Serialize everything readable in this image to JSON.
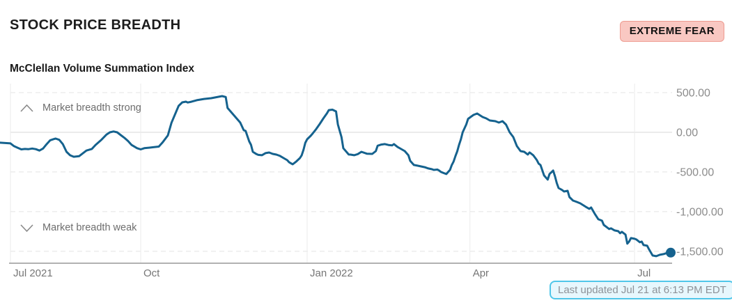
{
  "header": {
    "title": "STOCK PRICE BREADTH",
    "status_badge": "EXTREME FEAR"
  },
  "chart": {
    "subtitle": "McClellan Volume Summation Index",
    "annotations": {
      "strong": "Market breadth strong",
      "weak": "Market breadth weak"
    }
  },
  "footer": {
    "last_updated": "Last updated Jul 21 at 6:13 PM EDT"
  },
  "colors": {
    "badge_bg": "#f9c8c2",
    "badge_border": "#ee9b90",
    "badge_text": "#111111",
    "pill_bg": "#e7f7fd",
    "pill_border": "#4fc6e9",
    "pill_text": "#8d9298",
    "line": "#15628e"
  },
  "chart_data": {
    "type": "line",
    "title": "McClellan Volume Summation Index",
    "x_start": "2021-07-21",
    "x_end": "2022-07-21",
    "ylim": [
      -1650,
      614
    ],
    "y_axis_side": "right",
    "legend_position": "none",
    "grid": {
      "horizontal": "dashed",
      "zero_line": "solid",
      "vertical": "solid"
    },
    "line_color": "#15628e",
    "end_marker": true,
    "y_ticks": [
      {
        "value": 500,
        "label": "500.00"
      },
      {
        "value": 0,
        "label": "0.00"
      },
      {
        "value": -500,
        "label": "-500.00"
      },
      {
        "value": -1000,
        "label": "-1,000.00"
      },
      {
        "value": -1500,
        "label": "-1,500.00"
      }
    ],
    "x_ticks": [
      {
        "date": "2021-07-21",
        "label": "Jul 2021"
      },
      {
        "date": "2021-10-01",
        "label": "Oct"
      },
      {
        "date": "2022-01-01",
        "label": "Jan 2022"
      },
      {
        "date": "2022-04-01",
        "label": "Apr"
      },
      {
        "date": "2022-07-01",
        "label": "Jul"
      }
    ],
    "series": [
      {
        "name": "McClellan Volume Summation Index",
        "points": [
          [
            "2021-07-15",
            -130
          ],
          [
            "2021-07-21",
            -140
          ],
          [
            "2021-07-23",
            -175
          ],
          [
            "2021-07-25",
            -195
          ],
          [
            "2021-07-27",
            -215
          ],
          [
            "2021-07-29",
            -210
          ],
          [
            "2021-07-31",
            -213
          ],
          [
            "2021-08-02",
            -205
          ],
          [
            "2021-08-04",
            -213
          ],
          [
            "2021-08-06",
            -230
          ],
          [
            "2021-08-08",
            -205
          ],
          [
            "2021-08-10",
            -150
          ],
          [
            "2021-08-12",
            -100
          ],
          [
            "2021-08-14",
            -85
          ],
          [
            "2021-08-15",
            -79
          ],
          [
            "2021-08-17",
            -95
          ],
          [
            "2021-08-19",
            -150
          ],
          [
            "2021-08-21",
            -246
          ],
          [
            "2021-08-23",
            -290
          ],
          [
            "2021-08-25",
            -308
          ],
          [
            "2021-08-28",
            -300
          ],
          [
            "2021-08-30",
            -265
          ],
          [
            "2021-09-01",
            -230
          ],
          [
            "2021-09-04",
            -210
          ],
          [
            "2021-09-06",
            -160
          ],
          [
            "2021-09-09",
            -100
          ],
          [
            "2021-09-12",
            -30
          ],
          [
            "2021-09-14",
            0
          ],
          [
            "2021-09-16",
            10
          ],
          [
            "2021-09-18",
            0
          ],
          [
            "2021-09-20",
            -35
          ],
          [
            "2021-09-22",
            -70
          ],
          [
            "2021-09-24",
            -110
          ],
          [
            "2021-09-26",
            -160
          ],
          [
            "2021-09-29",
            -200
          ],
          [
            "2021-10-01",
            -215
          ],
          [
            "2021-10-03",
            -200
          ],
          [
            "2021-10-06",
            -193
          ],
          [
            "2021-10-08",
            -188
          ],
          [
            "2021-10-11",
            -180
          ],
          [
            "2021-10-13",
            -130
          ],
          [
            "2021-10-16",
            -40
          ],
          [
            "2021-10-18",
            120
          ],
          [
            "2021-10-21",
            280
          ],
          [
            "2021-10-22",
            333
          ],
          [
            "2021-10-24",
            377
          ],
          [
            "2021-10-26",
            386
          ],
          [
            "2021-10-27",
            375
          ],
          [
            "2021-10-29",
            385
          ],
          [
            "2021-11-01",
            404
          ],
          [
            "2021-11-05",
            420
          ],
          [
            "2021-11-09",
            430
          ],
          [
            "2021-11-13",
            447
          ],
          [
            "2021-11-15",
            456
          ],
          [
            "2021-11-17",
            445
          ],
          [
            "2021-11-18",
            307
          ],
          [
            "2021-11-21",
            228
          ],
          [
            "2021-11-23",
            175
          ],
          [
            "2021-11-25",
            123
          ],
          [
            "2021-11-27",
            26
          ],
          [
            "2021-11-28",
            18
          ],
          [
            "2021-11-30",
            -114
          ],
          [
            "2021-12-01",
            -158
          ],
          [
            "2021-12-02",
            -246
          ],
          [
            "2021-12-04",
            -275
          ],
          [
            "2021-12-05",
            -285
          ],
          [
            "2021-12-07",
            -289
          ],
          [
            "2021-12-09",
            -263
          ],
          [
            "2021-12-11",
            -255
          ],
          [
            "2021-12-13",
            -272
          ],
          [
            "2021-12-15",
            -281
          ],
          [
            "2021-12-17",
            -298
          ],
          [
            "2021-12-19",
            -325
          ],
          [
            "2021-12-21",
            -351
          ],
          [
            "2021-12-22",
            -377
          ],
          [
            "2021-12-24",
            -403
          ],
          [
            "2021-12-26",
            -368
          ],
          [
            "2021-12-28",
            -325
          ],
          [
            "2021-12-29",
            -289
          ],
          [
            "2021-12-30",
            -220
          ],
          [
            "2021-12-31",
            -131
          ],
          [
            "2022-01-01",
            -88
          ],
          [
            "2022-01-03",
            -44
          ],
          [
            "2022-01-04",
            -18
          ],
          [
            "2022-01-06",
            40
          ],
          [
            "2022-01-08",
            105
          ],
          [
            "2022-01-10",
            175
          ],
          [
            "2022-01-12",
            240
          ],
          [
            "2022-01-13",
            280
          ],
          [
            "2022-01-15",
            285
          ],
          [
            "2022-01-17",
            263
          ],
          [
            "2022-01-18",
            100
          ],
          [
            "2022-01-20",
            -60
          ],
          [
            "2022-01-21",
            -200
          ],
          [
            "2022-01-24",
            -280
          ],
          [
            "2022-01-25",
            -281
          ],
          [
            "2022-01-27",
            -289
          ],
          [
            "2022-01-29",
            -275
          ],
          [
            "2022-01-31",
            -246
          ],
          [
            "2022-02-03",
            -270
          ],
          [
            "2022-02-06",
            -272
          ],
          [
            "2022-02-08",
            -237
          ],
          [
            "2022-02-09",
            -170
          ],
          [
            "2022-02-11",
            -155
          ],
          [
            "2022-02-13",
            -149
          ],
          [
            "2022-02-15",
            -160
          ],
          [
            "2022-02-17",
            -165
          ],
          [
            "2022-02-18",
            -149
          ],
          [
            "2022-02-20",
            -185
          ],
          [
            "2022-02-22",
            -211
          ],
          [
            "2022-02-24",
            -237
          ],
          [
            "2022-02-26",
            -290
          ],
          [
            "2022-02-27",
            -360
          ],
          [
            "2022-03-01",
            -412
          ],
          [
            "2022-03-03",
            -421
          ],
          [
            "2022-03-05",
            -430
          ],
          [
            "2022-03-07",
            -440
          ],
          [
            "2022-03-09",
            -456
          ],
          [
            "2022-03-11",
            -465
          ],
          [
            "2022-03-12",
            -474
          ],
          [
            "2022-03-14",
            -470
          ],
          [
            "2022-03-15",
            -482
          ],
          [
            "2022-03-16",
            -500
          ],
          [
            "2022-03-18",
            -518
          ],
          [
            "2022-03-19",
            -526
          ],
          [
            "2022-03-20",
            -500
          ],
          [
            "2022-03-21",
            -474
          ],
          [
            "2022-03-22",
            -412
          ],
          [
            "2022-03-23",
            -368
          ],
          [
            "2022-03-24",
            -300
          ],
          [
            "2022-03-25",
            -240
          ],
          [
            "2022-03-26",
            -158
          ],
          [
            "2022-03-27",
            -90
          ],
          [
            "2022-03-28",
            0
          ],
          [
            "2022-03-30",
            100
          ],
          [
            "2022-03-31",
            170
          ],
          [
            "2022-04-03",
            219
          ],
          [
            "2022-04-04",
            228
          ],
          [
            "2022-04-05",
            237
          ],
          [
            "2022-04-08",
            193
          ],
          [
            "2022-04-10",
            175
          ],
          [
            "2022-04-12",
            149
          ],
          [
            "2022-04-15",
            140
          ],
          [
            "2022-04-17",
            123
          ],
          [
            "2022-04-19",
            140
          ],
          [
            "2022-04-21",
            96
          ],
          [
            "2022-04-23",
            0
          ],
          [
            "2022-04-25",
            -61
          ],
          [
            "2022-04-27",
            -175
          ],
          [
            "2022-04-29",
            -237
          ],
          [
            "2022-05-01",
            -246
          ],
          [
            "2022-05-03",
            -280
          ],
          [
            "2022-05-04",
            -254
          ],
          [
            "2022-05-06",
            -289
          ],
          [
            "2022-05-08",
            -350
          ],
          [
            "2022-05-09",
            -395
          ],
          [
            "2022-05-10",
            -412
          ],
          [
            "2022-05-12",
            -544
          ],
          [
            "2022-05-14",
            -596
          ],
          [
            "2022-05-15",
            -526
          ],
          [
            "2022-05-17",
            -482
          ],
          [
            "2022-05-18",
            -553
          ],
          [
            "2022-05-19",
            -640
          ],
          [
            "2022-05-20",
            -702
          ],
          [
            "2022-05-22",
            -728
          ],
          [
            "2022-05-23",
            -746
          ],
          [
            "2022-05-25",
            -737
          ],
          [
            "2022-05-26",
            -816
          ],
          [
            "2022-05-28",
            -860
          ],
          [
            "2022-05-30",
            -877
          ],
          [
            "2022-06-01",
            -895
          ],
          [
            "2022-06-04",
            -938
          ],
          [
            "2022-06-06",
            -965
          ],
          [
            "2022-06-07",
            -947
          ],
          [
            "2022-06-09",
            -1026
          ],
          [
            "2022-06-11",
            -1096
          ],
          [
            "2022-06-13",
            -1114
          ],
          [
            "2022-06-14",
            -1167
          ],
          [
            "2022-06-16",
            -1202
          ],
          [
            "2022-06-17",
            -1219
          ],
          [
            "2022-06-18",
            -1210
          ],
          [
            "2022-06-20",
            -1237
          ],
          [
            "2022-06-22",
            -1246
          ],
          [
            "2022-06-23",
            -1272
          ],
          [
            "2022-06-24",
            -1254
          ],
          [
            "2022-06-26",
            -1289
          ],
          [
            "2022-06-27",
            -1403
          ],
          [
            "2022-06-28",
            -1377
          ],
          [
            "2022-06-29",
            -1333
          ],
          [
            "2022-07-01",
            -1342
          ],
          [
            "2022-07-02",
            -1351
          ],
          [
            "2022-07-04",
            -1386
          ],
          [
            "2022-07-05",
            -1377
          ],
          [
            "2022-07-06",
            -1421
          ],
          [
            "2022-07-08",
            -1430
          ],
          [
            "2022-07-09",
            -1474
          ],
          [
            "2022-07-11",
            -1553
          ],
          [
            "2022-07-13",
            -1561
          ],
          [
            "2022-07-14",
            -1553
          ],
          [
            "2022-07-15",
            -1544
          ],
          [
            "2022-07-17",
            -1535
          ],
          [
            "2022-07-19",
            -1520
          ],
          [
            "2022-07-21",
            -1517
          ]
        ]
      }
    ]
  }
}
